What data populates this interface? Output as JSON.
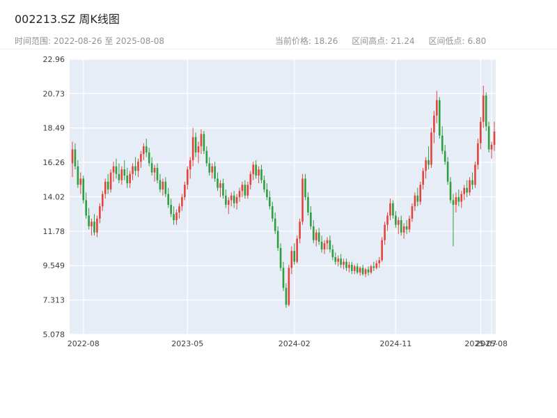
{
  "header": {
    "title": "002213.SZ 周K线图",
    "date_range": "时间范围: 2022-08-26 至 2025-08-08",
    "stats": [
      {
        "label": "当前价格:",
        "value": "18.26"
      },
      {
        "label": "区间高点:",
        "value": "21.24"
      },
      {
        "label": "区间低点:",
        "value": "6.80"
      }
    ]
  },
  "chart_data": {
    "type": "candlestick",
    "symbol": "002213.SZ",
    "interval": "weekly",
    "title": "002213.SZ 周K线图",
    "start_date": "2022-08-26",
    "end_date": "2025-08-08",
    "current_price": 18.26,
    "range_high": 21.24,
    "range_low": 6.8,
    "up_color": "#e2443b",
    "down_color": "#2e9e3f",
    "plot_bg": "#e7edf6",
    "grid_color": "#ffffff",
    "y_range": [
      5.078,
      22.96
    ],
    "y_ticks": [
      5.078,
      7.313,
      9.549,
      11.78,
      14.02,
      16.26,
      18.49,
      20.73,
      22.96
    ],
    "x_ticks": [
      {
        "label": "2022-08",
        "week": 4
      },
      {
        "label": "2023-05",
        "week": 42
      },
      {
        "label": "2024-02",
        "week": 81
      },
      {
        "label": "2024-11",
        "week": 118
      },
      {
        "label": "2025-07",
        "week": 149
      },
      {
        "label": "2025-08",
        "week": 153
      }
    ],
    "candles": [
      [
        16.2,
        17.6,
        15.3,
        17.1
      ],
      [
        17.1,
        17.5,
        15.8,
        16.0
      ],
      [
        16.0,
        16.4,
        14.6,
        14.8
      ],
      [
        14.8,
        15.6,
        14.2,
        15.2
      ],
      [
        15.2,
        15.4,
        13.6,
        13.8
      ],
      [
        13.8,
        14.3,
        12.6,
        12.8
      ],
      [
        12.8,
        13.3,
        11.9,
        12.1
      ],
      [
        12.1,
        12.6,
        11.5,
        12.4
      ],
      [
        12.4,
        12.9,
        11.5,
        11.7
      ],
      [
        11.7,
        12.8,
        11.4,
        12.6
      ],
      [
        12.6,
        13.6,
        12.3,
        13.4
      ],
      [
        13.4,
        14.4,
        13.1,
        14.2
      ],
      [
        14.2,
        15.2,
        13.9,
        15.0
      ],
      [
        15.0,
        15.5,
        14.2,
        14.5
      ],
      [
        14.5,
        15.8,
        14.3,
        15.6
      ],
      [
        15.6,
        16.3,
        15.0,
        16.0
      ],
      [
        16.0,
        16.5,
        15.2,
        15.5
      ],
      [
        15.5,
        16.2,
        14.9,
        15.1
      ],
      [
        15.1,
        16.0,
        14.8,
        15.8
      ],
      [
        15.8,
        16.4,
        15.1,
        15.4
      ],
      [
        15.4,
        15.9,
        14.6,
        14.9
      ],
      [
        14.9,
        15.7,
        14.6,
        15.5
      ],
      [
        15.5,
        16.2,
        15.1,
        16.0
      ],
      [
        16.0,
        16.6,
        15.4,
        15.7
      ],
      [
        15.7,
        16.5,
        15.3,
        16.3
      ],
      [
        16.3,
        17.0,
        15.9,
        16.8
      ],
      [
        16.8,
        17.5,
        16.4,
        17.3
      ],
      [
        17.3,
        17.8,
        16.6,
        16.9
      ],
      [
        16.9,
        17.2,
        16.0,
        16.2
      ],
      [
        16.2,
        16.6,
        15.4,
        15.6
      ],
      [
        15.6,
        16.1,
        15.0,
        15.9
      ],
      [
        15.9,
        16.2,
        14.9,
        15.1
      ],
      [
        15.1,
        15.5,
        14.3,
        14.5
      ],
      [
        14.5,
        15.2,
        14.1,
        15.0
      ],
      [
        15.0,
        15.3,
        14.0,
        14.2
      ],
      [
        14.2,
        14.6,
        13.3,
        13.5
      ],
      [
        13.5,
        13.9,
        12.7,
        12.9
      ],
      [
        12.9,
        13.4,
        12.2,
        12.5
      ],
      [
        12.5,
        13.2,
        12.2,
        13.0
      ],
      [
        13.0,
        13.6,
        12.6,
        13.4
      ],
      [
        13.4,
        14.2,
        13.1,
        14.0
      ],
      [
        14.0,
        15.0,
        13.8,
        14.8
      ],
      [
        14.8,
        16.0,
        14.5,
        15.8
      ],
      [
        15.8,
        16.6,
        15.2,
        16.4
      ],
      [
        16.4,
        18.5,
        16.0,
        17.9
      ],
      [
        17.9,
        18.2,
        16.6,
        16.9
      ],
      [
        16.9,
        17.6,
        16.2,
        17.3
      ],
      [
        17.3,
        18.4,
        16.8,
        18.1
      ],
      [
        18.1,
        18.3,
        16.8,
        17.0
      ],
      [
        17.0,
        17.3,
        16.0,
        16.2
      ],
      [
        16.2,
        16.6,
        15.4,
        15.6
      ],
      [
        15.6,
        16.2,
        15.2,
        16.0
      ],
      [
        16.0,
        16.3,
        15.0,
        15.2
      ],
      [
        15.2,
        15.6,
        14.4,
        14.6
      ],
      [
        14.6,
        15.1,
        14.0,
        14.9
      ],
      [
        14.9,
        15.2,
        13.9,
        14.1
      ],
      [
        14.1,
        14.5,
        13.3,
        13.5
      ],
      [
        13.5,
        14.0,
        12.9,
        13.8
      ],
      [
        13.8,
        14.3,
        13.4,
        14.1
      ],
      [
        14.1,
        14.4,
        13.3,
        13.6
      ],
      [
        13.6,
        14.2,
        13.2,
        14.0
      ],
      [
        14.0,
        14.6,
        13.7,
        14.4
      ],
      [
        14.4,
        15.0,
        14.0,
        14.8
      ],
      [
        14.8,
        15.1,
        13.9,
        14.1
      ],
      [
        14.1,
        15.0,
        13.9,
        14.8
      ],
      [
        14.8,
        15.7,
        14.5,
        15.5
      ],
      [
        15.5,
        16.3,
        15.1,
        16.1
      ],
      [
        16.1,
        16.4,
        15.2,
        15.4
      ],
      [
        15.4,
        16.0,
        14.9,
        15.8
      ],
      [
        15.8,
        16.1,
        14.9,
        15.1
      ],
      [
        15.1,
        15.4,
        14.3,
        14.5
      ],
      [
        14.5,
        14.9,
        13.8,
        14.0
      ],
      [
        14.0,
        14.4,
        13.2,
        13.4
      ],
      [
        13.4,
        13.7,
        12.4,
        12.6
      ],
      [
        12.6,
        13.0,
        11.6,
        11.8
      ],
      [
        11.8,
        12.1,
        10.5,
        10.7
      ],
      [
        10.7,
        11.0,
        9.2,
        9.4
      ],
      [
        9.4,
        9.8,
        7.9,
        8.1
      ],
      [
        8.1,
        8.4,
        6.8,
        7.0
      ],
      [
        7.0,
        9.6,
        6.9,
        9.4
      ],
      [
        9.4,
        10.8,
        9.0,
        10.5
      ],
      [
        10.5,
        11.0,
        9.6,
        9.8
      ],
      [
        9.8,
        11.5,
        9.7,
        11.3
      ],
      [
        11.3,
        12.6,
        11.0,
        12.4
      ],
      [
        12.4,
        15.5,
        12.2,
        15.2
      ],
      [
        15.2,
        15.5,
        13.8,
        14.0
      ],
      [
        14.0,
        14.3,
        12.8,
        13.0
      ],
      [
        13.0,
        13.4,
        11.9,
        12.1
      ],
      [
        12.1,
        12.5,
        11.0,
        11.2
      ],
      [
        11.2,
        11.9,
        10.8,
        11.7
      ],
      [
        11.7,
        12.0,
        10.9,
        11.1
      ],
      [
        11.1,
        11.5,
        10.4,
        10.6
      ],
      [
        10.6,
        11.2,
        10.3,
        11.0
      ],
      [
        11.0,
        11.4,
        10.6,
        11.2
      ],
      [
        11.2,
        11.5,
        10.4,
        10.6
      ],
      [
        10.6,
        10.9,
        9.9,
        10.1
      ],
      [
        10.1,
        10.4,
        9.6,
        9.8
      ],
      [
        9.8,
        10.2,
        9.5,
        10.0
      ],
      [
        10.0,
        10.3,
        9.4,
        9.6
      ],
      [
        9.6,
        10.0,
        9.3,
        9.8
      ],
      [
        9.8,
        10.0,
        9.2,
        9.4
      ],
      [
        9.4,
        9.8,
        9.1,
        9.6
      ],
      [
        9.6,
        9.8,
        9.0,
        9.2
      ],
      [
        9.2,
        9.6,
        9.0,
        9.5
      ],
      [
        9.5,
        9.7,
        9.0,
        9.1
      ],
      [
        9.1,
        9.5,
        8.9,
        9.4
      ],
      [
        9.4,
        9.6,
        8.9,
        9.0
      ],
      [
        9.0,
        9.4,
        8.8,
        9.3
      ],
      [
        9.3,
        9.5,
        8.9,
        9.1
      ],
      [
        9.1,
        9.6,
        9.0,
        9.5
      ],
      [
        9.5,
        9.8,
        9.2,
        9.4
      ],
      [
        9.4,
        9.9,
        9.3,
        9.7
      ],
      [
        9.7,
        10.1,
        9.4,
        9.9
      ],
      [
        9.9,
        11.4,
        9.8,
        11.2
      ],
      [
        11.2,
        12.4,
        10.9,
        12.2
      ],
      [
        12.2,
        13.0,
        11.8,
        12.8
      ],
      [
        12.8,
        13.9,
        12.5,
        13.6
      ],
      [
        13.6,
        13.8,
        12.6,
        12.8
      ],
      [
        12.8,
        13.1,
        12.0,
        12.2
      ],
      [
        12.2,
        12.7,
        11.6,
        12.5
      ],
      [
        12.5,
        12.8,
        11.5,
        11.7
      ],
      [
        11.7,
        12.3,
        11.3,
        12.1
      ],
      [
        12.1,
        12.5,
        11.6,
        11.9
      ],
      [
        11.9,
        12.8,
        11.7,
        12.6
      ],
      [
        12.6,
        13.6,
        12.4,
        13.4
      ],
      [
        13.4,
        14.3,
        13.1,
        14.1
      ],
      [
        14.1,
        14.6,
        13.4,
        13.7
      ],
      [
        13.7,
        15.0,
        13.5,
        14.8
      ],
      [
        14.8,
        15.9,
        14.5,
        15.7
      ],
      [
        15.7,
        16.6,
        15.2,
        16.4
      ],
      [
        16.4,
        17.3,
        15.8,
        16.1
      ],
      [
        16.1,
        18.5,
        15.9,
        18.2
      ],
      [
        18.2,
        19.6,
        17.5,
        19.3
      ],
      [
        19.3,
        20.9,
        18.8,
        20.3
      ],
      [
        20.3,
        20.5,
        17.8,
        18.0
      ],
      [
        18.0,
        18.6,
        16.8,
        17.0
      ],
      [
        17.0,
        17.4,
        16.1,
        16.3
      ],
      [
        16.3,
        16.6,
        14.8,
        15.0
      ],
      [
        15.0,
        15.3,
        13.6,
        13.8
      ],
      [
        13.8,
        14.2,
        10.8,
        13.5
      ],
      [
        13.5,
        14.3,
        13.0,
        14.0
      ],
      [
        14.0,
        14.5,
        13.4,
        13.7
      ],
      [
        13.7,
        14.4,
        13.3,
        14.2
      ],
      [
        14.2,
        14.8,
        13.8,
        14.6
      ],
      [
        14.6,
        15.1,
        14.0,
        14.3
      ],
      [
        14.3,
        15.3,
        14.1,
        15.1
      ],
      [
        15.1,
        15.6,
        14.5,
        14.8
      ],
      [
        14.8,
        16.3,
        14.6,
        16.1
      ],
      [
        16.1,
        17.8,
        15.8,
        17.5
      ],
      [
        17.5,
        19.2,
        17.1,
        18.9
      ],
      [
        18.9,
        21.24,
        18.5,
        20.6
      ],
      [
        20.6,
        20.8,
        18.3,
        18.6
      ],
      [
        18.6,
        18.9,
        16.9,
        17.1
      ],
      [
        17.1,
        17.6,
        16.5,
        17.4
      ],
      [
        17.4,
        18.9,
        17.0,
        18.26
      ]
    ]
  }
}
